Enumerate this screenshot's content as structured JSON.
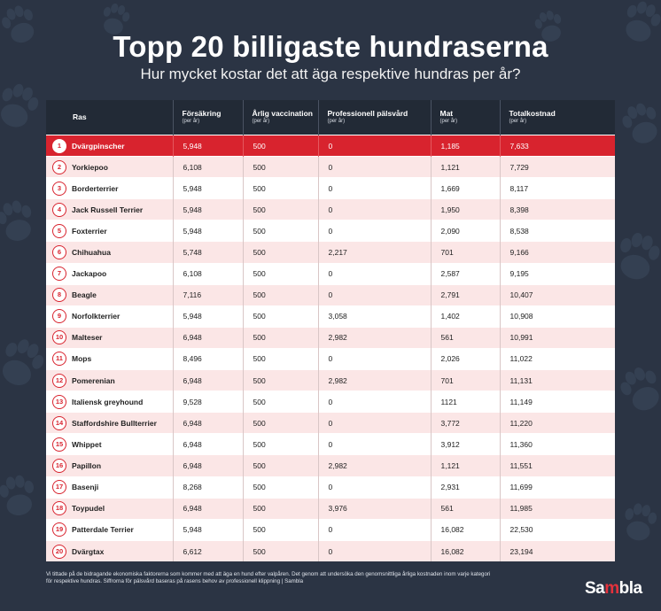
{
  "title": "Topp 20 billigaste hundraserna",
  "subtitle": "Hur mycket kostar det att äga respektive hundras per år?",
  "chart_data": {
    "type": "table",
    "columns": [
      {
        "label": "Ras",
        "unit": ""
      },
      {
        "label": "Försäkring",
        "unit": "(per år)"
      },
      {
        "label": "Årlig vaccination",
        "unit": "(per år)"
      },
      {
        "label": "Professionell pälsvård",
        "unit": "(per år)"
      },
      {
        "label": "Mat",
        "unit": "(per år)"
      },
      {
        "label": "Totalkostnad",
        "unit": "(per år)"
      }
    ],
    "rows": [
      {
        "rank": "1",
        "ras": "Dvärgpinscher",
        "forsakring": "5,948",
        "vaccination": "500",
        "palsvard": "0",
        "mat": "1,185",
        "total": "7,633"
      },
      {
        "rank": "2",
        "ras": "Yorkiepoo",
        "forsakring": "6,108",
        "vaccination": "500",
        "palsvard": "0",
        "mat": "1,121",
        "total": "7,729"
      },
      {
        "rank": "3",
        "ras": "Borderterrier",
        "forsakring": "5,948",
        "vaccination": "500",
        "palsvard": "0",
        "mat": "1,669",
        "total": "8,117"
      },
      {
        "rank": "4",
        "ras": "Jack Russell Terrier",
        "forsakring": "5,948",
        "vaccination": "500",
        "palsvard": "0",
        "mat": "1,950",
        "total": "8,398"
      },
      {
        "rank": "5",
        "ras": "Foxterrier",
        "forsakring": "5,948",
        "vaccination": "500",
        "palsvard": "0",
        "mat": "2,090",
        "total": "8,538"
      },
      {
        "rank": "6",
        "ras": "Chihuahua",
        "forsakring": "5,748",
        "vaccination": "500",
        "palsvard": "2,217",
        "mat": "701",
        "total": "9,166"
      },
      {
        "rank": "7",
        "ras": "Jackapoo",
        "forsakring": "6,108",
        "vaccination": "500",
        "palsvard": "0",
        "mat": "2,587",
        "total": "9,195"
      },
      {
        "rank": "8",
        "ras": "Beagle",
        "forsakring": "7,116",
        "vaccination": "500",
        "palsvard": "0",
        "mat": "2,791",
        "total": "10,407"
      },
      {
        "rank": "9",
        "ras": "Norfolkterrier",
        "forsakring": "5,948",
        "vaccination": "500",
        "palsvard": "3,058",
        "mat": "1,402",
        "total": "10,908"
      },
      {
        "rank": "10",
        "ras": "Malteser",
        "forsakring": "6,948",
        "vaccination": "500",
        "palsvard": "2,982",
        "mat": "561",
        "total": "10,991"
      },
      {
        "rank": "11",
        "ras": "Mops",
        "forsakring": "8,496",
        "vaccination": "500",
        "palsvard": "0",
        "mat": "2,026",
        "total": "11,022"
      },
      {
        "rank": "12",
        "ras": "Pomerenian",
        "forsakring": "6,948",
        "vaccination": "500",
        "palsvard": "2,982",
        "mat": "701",
        "total": "11,131"
      },
      {
        "rank": "13",
        "ras": "Italiensk greyhound",
        "forsakring": "9,528",
        "vaccination": "500",
        "palsvard": "0",
        "mat": "1121",
        "total": "11,149"
      },
      {
        "rank": "14",
        "ras": "Staffordshire Bullterrier",
        "forsakring": "6,948",
        "vaccination": "500",
        "palsvard": "0",
        "mat": "3,772",
        "total": "11,220"
      },
      {
        "rank": "15",
        "ras": "Whippet",
        "forsakring": "6,948",
        "vaccination": "500",
        "palsvard": "0",
        "mat": "3,912",
        "total": "11,360"
      },
      {
        "rank": "16",
        "ras": "Papillon",
        "forsakring": "6,948",
        "vaccination": "500",
        "palsvard": "2,982",
        "mat": "1,121",
        "total": "11,551"
      },
      {
        "rank": "17",
        "ras": "Basenji",
        "forsakring": "8,268",
        "vaccination": "500",
        "palsvard": "0",
        "mat": "2,931",
        "total": "11,699"
      },
      {
        "rank": "18",
        "ras": "Toypudel",
        "forsakring": "6,948",
        "vaccination": "500",
        "palsvard": "3,976",
        "mat": "561",
        "total": "11,985"
      },
      {
        "rank": "19",
        "ras": "Patterdale Terrier",
        "forsakring": "5,948",
        "vaccination": "500",
        "palsvard": "0",
        "mat": "16,082",
        "total": "22,530"
      },
      {
        "rank": "20",
        "ras": "Dvärgtax",
        "forsakring": "6,612",
        "vaccination": "500",
        "palsvard": "0",
        "mat": "16,082",
        "total": "23,194"
      }
    ]
  },
  "footnote": {
    "line1": "Vi tittade på de bidragande ekonomiska faktorerna som kommer med att äga en hund efter valpåren. Det genom att undersöka den genomsnittliga årliga kostnaden inom varje kategori",
    "line2": "för respektive hundras. Siffrorna för pälsvård baseras på rasens behov av professionell klippning | Sambla"
  },
  "logo": {
    "part1": "Sa",
    "part2": "m",
    "part3": "bla"
  },
  "colors": {
    "background": "#2b3444",
    "header": "#222a36",
    "accent": "#d8232e",
    "row_alt": "#fbe6e6"
  },
  "decor": {
    "background_icon": "paw-print-icon"
  }
}
